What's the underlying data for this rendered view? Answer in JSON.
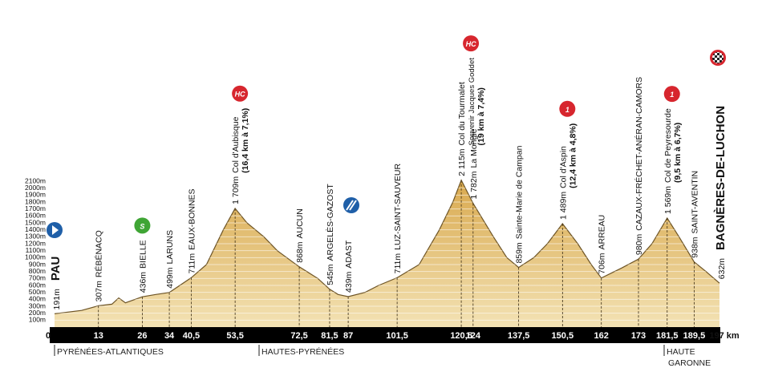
{
  "chart_data": {
    "type": "area",
    "x": [
      0,
      8,
      13,
      17,
      19,
      21,
      26,
      30,
      34,
      40.5,
      45,
      50,
      53.5,
      57,
      62,
      66,
      72.5,
      78,
      81.5,
      84,
      87,
      92,
      96,
      101.5,
      108,
      114,
      118,
      120.5,
      124,
      130,
      134,
      137.5,
      142,
      146,
      150.5,
      155,
      159,
      162,
      168,
      173,
      177,
      181.5,
      185,
      189.5,
      193,
      197
    ],
    "values": [
      191,
      240,
      307,
      330,
      420,
      350,
      436,
      470,
      499,
      711,
      900,
      1400,
      1709,
      1500,
      1300,
      1100,
      868,
      700,
      545,
      470,
      439,
      500,
      600,
      711,
      900,
      1400,
      1800,
      2115,
      1782,
      1300,
      1000,
      859,
      1000,
      1200,
      1489,
      1200,
      900,
      706,
      850,
      980,
      1200,
      1569,
      1300,
      938,
      800,
      632
    ],
    "color": "#dcb462",
    "xlim": [
      0,
      197
    ],
    "ylim": [
      0,
      2100
    ],
    "xticks": [
      0,
      13,
      26,
      34,
      {
        "value": 40.5,
        "label": "40,5"
      },
      {
        "value": 53.5,
        "label": "53,5"
      },
      {
        "value": 72.5,
        "label": "72,5"
      },
      {
        "value": 81.5,
        "label": "81,5"
      },
      87,
      {
        "value": 101.5,
        "label": "101,5"
      },
      {
        "value": 120.5,
        "label": "120,5"
      },
      124,
      {
        "value": 137.5,
        "label": "137,5"
      },
      {
        "value": 150.5,
        "label": "150,5"
      },
      162,
      173,
      {
        "value": 181.5,
        "label": "181,5"
      },
      {
        "value": 189.5,
        "label": "189,5"
      },
      {
        "value": 197,
        "label": "197 km"
      }
    ],
    "yticks": [
      {
        "value": 100,
        "label": "100m"
      },
      {
        "value": 200,
        "label": "200m"
      },
      {
        "value": 300,
        "label": "300m"
      },
      {
        "value": 400,
        "label": "400m"
      },
      {
        "value": 500,
        "label": "500m"
      },
      {
        "value": 600,
        "label": "600m"
      },
      {
        "value": 700,
        "label": "700m"
      },
      {
        "value": 800,
        "label": "800m"
      },
      {
        "value": 900,
        "label": "900m"
      },
      {
        "value": 1000,
        "label": "1000m"
      },
      {
        "value": 1100,
        "label": "1100m"
      },
      {
        "value": 1200,
        "label": "1200m"
      },
      {
        "value": 1300,
        "label": "1300m"
      },
      {
        "value": 1400,
        "label": "1400m"
      },
      {
        "value": 1500,
        "label": "1500m"
      },
      {
        "value": 1600,
        "label": "1600m"
      },
      {
        "value": 1700,
        "label": "1700m"
      },
      {
        "value": 1800,
        "label": "1800m"
      },
      {
        "value": 1900,
        "label": "1900m"
      },
      {
        "value": 2000,
        "label": "2000m"
      },
      {
        "value": 2100,
        "label": "2100m"
      }
    ],
    "waypoints": [
      {
        "altitude": "191m",
        "name": "PAU"
      },
      {
        "altitude": "307m",
        "name": "RÉBÉNACQ"
      },
      {
        "altitude": "436m",
        "name": "BIELLE",
        "icon": {
          "label": "S",
          "color": "#3fa535"
        }
      },
      {
        "altitude": "499m",
        "name": "LARUNS"
      },
      {
        "altitude": "711m",
        "name": "EAUX-BONNES"
      },
      {
        "altitude": "1 709m",
        "name": "Col d'Aubisque",
        "extra": [
          "(16,4 km à 7,1%)"
        ],
        "icon": {
          "label": "HC",
          "color": "#d7262e"
        }
      },
      {
        "altitude": "868m",
        "name": "AUCUN"
      },
      {
        "altitude": "545m",
        "name": "ARGELÈS-GAZOST"
      },
      {
        "altitude": "439m",
        "name": "ADAST"
      },
      {
        "altitude": "711m",
        "name": "LUZ-SAINT-SAUVEUR"
      },
      {
        "altitude": "2 115m",
        "name": "Col du Tourmalet",
        "extra": [
          "Souvenir Jacques Goddet",
          "(19 km à 7,4%)"
        ],
        "icon": {
          "label": "HC",
          "color": "#d7262e"
        }
      },
      {
        "altitude": "1 782m",
        "name": "La Mongie"
      },
      {
        "altitude": "859m",
        "name": "Sainte-Marie de Campan"
      },
      {
        "altitude": "1 489m",
        "name": "Col d'Aspin",
        "extra": [
          "(12,4 km à 4,8%)"
        ],
        "icon": {
          "label": "1",
          "color": "#d7262e"
        }
      },
      {
        "altitude": "706m",
        "name": "ARREAU"
      },
      {
        "altitude": "980m",
        "name": "CAZAUX-FRÉCHET-ANÉRAN-CAMORS"
      },
      {
        "altitude": "1 569m",
        "name": "Col de Peyresourde",
        "extra": [
          "(9,5 km à 6,7%)"
        ],
        "icon": {
          "label": "1",
          "color": "#d7262e"
        }
      },
      {
        "altitude": "938m",
        "name": "SAINT-AVENTIN"
      },
      {
        "altitude": "632m",
        "name": "BAGNÈRES-DE-LUCHON"
      }
    ],
    "regions": [
      "PYRÉNÉES-ATLANTIQUES",
      "HAUTES-PYRÉNÉES",
      "HAUTE",
      "GARONNE"
    ]
  }
}
